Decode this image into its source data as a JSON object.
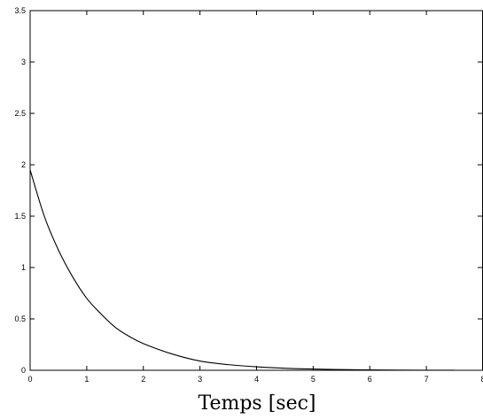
{
  "chart_data": {
    "type": "line",
    "title": "",
    "xlabel": "Temps [sec]",
    "ylabel": "",
    "xlim": [
      0,
      8
    ],
    "ylim": [
      0,
      3.5
    ],
    "xticks": [
      0,
      1,
      2,
      3,
      4,
      5,
      6,
      7,
      8
    ],
    "xtick_labels": [
      "0",
      "1",
      "2",
      "3",
      "4",
      "5",
      "6",
      "7",
      "8"
    ],
    "yticks": [
      0,
      0.5,
      1,
      1.5,
      2,
      2.5,
      3,
      3.5
    ],
    "ytick_labels": [
      "0",
      "0.5",
      "1",
      "1.5",
      "2",
      "2.5",
      "3",
      "3.5"
    ],
    "grid": false,
    "legend": "none",
    "series": [
      {
        "color": "#000000",
        "x": [
          0,
          0.25,
          0.5,
          0.75,
          1,
          1.25,
          1.5,
          1.75,
          2,
          2.5,
          3,
          3.5,
          4,
          4.5,
          5,
          5.5,
          6,
          6.5,
          7,
          7.5
        ],
        "y": [
          1.95,
          1.5,
          1.17,
          0.91,
          0.7,
          0.55,
          0.42,
          0.33,
          0.26,
          0.16,
          0.09,
          0.055,
          0.034,
          0.02,
          0.012,
          0.007,
          0.004,
          0.002,
          0.001,
          0.0005
        ]
      }
    ]
  }
}
